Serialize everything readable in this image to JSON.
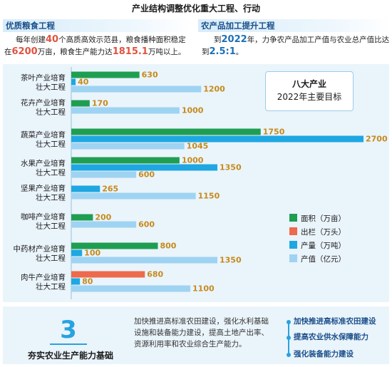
{
  "header": {
    "title": "产业结构调整优化重大工程、行动"
  },
  "grain": {
    "title": "优质粮食工程",
    "line1_a": "每年创建",
    "line1_num": "40",
    "line1_b": "个高质高效示范县，粮食播种面积稳定",
    "line2_a": "在",
    "line2_num1": "6200",
    "line2_b": "万亩，粮食生产能力达",
    "line2_num2": "1815.1",
    "line2_c": "万吨以上。"
  },
  "processing": {
    "title": "农产品加工提升工程",
    "line1_a": "到",
    "line1_num": "2022",
    "line1_b": "年，力争农产品加工产值与农业总产值比达",
    "line2_a": "到",
    "line2_num": "2.5:1",
    "line2_b": "。"
  },
  "target_box": {
    "line1": "八大产业",
    "line2": "2022年主要目标"
  },
  "chart_data": {
    "type": "bar",
    "orientation": "horizontal",
    "categories": [
      [
        "茶叶产业培育",
        "壮大工程"
      ],
      [
        "花卉产业培育",
        "壮大工程"
      ],
      [
        "蔬菜产业培育",
        "壮大工程"
      ],
      [
        "水果产业培育",
        "壮大工程"
      ],
      [
        "坚果产业培育",
        "壮大工程"
      ],
      [
        "咖啡产业培育",
        "壮大工程"
      ],
      [
        "中药材产业培育",
        "壮大工程"
      ],
      [
        "肉牛产业培育",
        "壮大工程"
      ]
    ],
    "series": [
      {
        "name": "面积（万亩）",
        "color": "#1f9e52",
        "values": [
          630,
          170,
          1750,
          1000,
          null,
          200,
          800,
          null
        ]
      },
      {
        "name": "出栏（万头）",
        "color": "#ee6a4c",
        "values": [
          null,
          null,
          null,
          null,
          null,
          null,
          null,
          680
        ]
      },
      {
        "name": "产量（万吨）",
        "color": "#1fa7e2",
        "values": [
          40,
          null,
          2700,
          1350,
          265,
          null,
          100,
          80
        ]
      },
      {
        "name": "产值（亿元）",
        "color": "#9fd3f2",
        "values": [
          1200,
          1000,
          1045,
          600,
          1150,
          600,
          1350,
          1100
        ]
      }
    ],
    "xlim": [
      0,
      2700
    ],
    "legend_position": "right",
    "grid": false
  },
  "bottom": {
    "number": "3",
    "title": "夯实农业生产能力基础",
    "text": "加快推进高标准农田建设，强化水利基础设施和装备能力建设，提高土地产出率、资源利用率和农业综合生产能力。",
    "items": [
      "加快推进高标准农田建设",
      "提高农业供水保障能力",
      "强化装备能力建设"
    ]
  }
}
